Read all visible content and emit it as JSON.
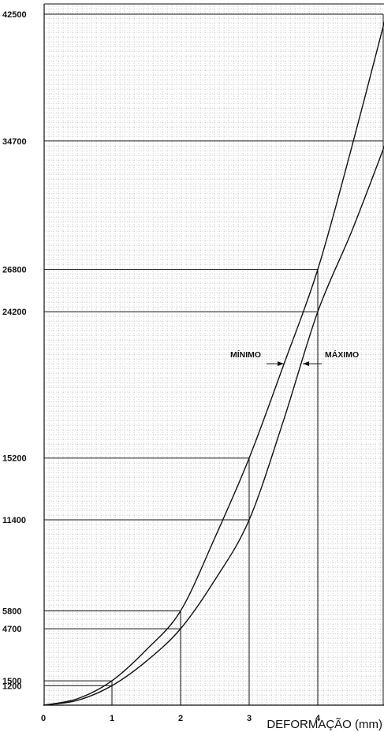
{
  "chart_data": {
    "type": "line",
    "title": "",
    "xlabel": "DEFORMAÇÃO (mm)",
    "ylabel": "",
    "xlim": [
      0,
      5
    ],
    "ylim": [
      0,
      42500
    ],
    "x_ticks": [
      "0",
      "1",
      "2",
      "3",
      "4"
    ],
    "y_ticks": [
      "1200",
      "1500",
      "4700",
      "5800",
      "11400",
      "15200",
      "24200",
      "26800",
      "34700",
      "42500"
    ],
    "grid": true,
    "series": [
      {
        "name": "MÍNIMO",
        "points": [
          [
            0,
            0
          ],
          [
            0.5,
            400
          ],
          [
            1,
            1500
          ],
          [
            1.5,
            3400
          ],
          [
            2,
            5800
          ],
          [
            2.5,
            10300
          ],
          [
            3,
            15200
          ],
          [
            3.5,
            20900
          ],
          [
            4,
            26800
          ],
          [
            4.5,
            34400
          ],
          [
            5,
            42500
          ]
        ]
      },
      {
        "name": "MÁXIMO",
        "points": [
          [
            0,
            0
          ],
          [
            0.5,
            300
          ],
          [
            1,
            1200
          ],
          [
            1.5,
            2700
          ],
          [
            2,
            4700
          ],
          [
            2.5,
            7700
          ],
          [
            3,
            11400
          ],
          [
            3.5,
            17500
          ],
          [
            4,
            24200
          ],
          [
            4.5,
            29200
          ],
          [
            5,
            34700
          ]
        ]
      }
    ],
    "reference_points": [
      {
        "x": 1,
        "y": 1500
      },
      {
        "x": 1,
        "y": 1200
      },
      {
        "x": 2,
        "y": 5800
      },
      {
        "x": 2,
        "y": 4700
      },
      {
        "x": 3,
        "y": 15200
      },
      {
        "x": 3,
        "y": 11400
      },
      {
        "x": 4,
        "y": 26800
      },
      {
        "x": 4,
        "y": 24200
      },
      {
        "x": 5,
        "y": 42500
      },
      {
        "x": 5,
        "y": 34700
      }
    ],
    "annotations": [
      {
        "text": "MÍNIMO",
        "series": "MÍNIMO"
      },
      {
        "text": "MÁXIMO",
        "series": "MÁXIMO"
      }
    ]
  }
}
